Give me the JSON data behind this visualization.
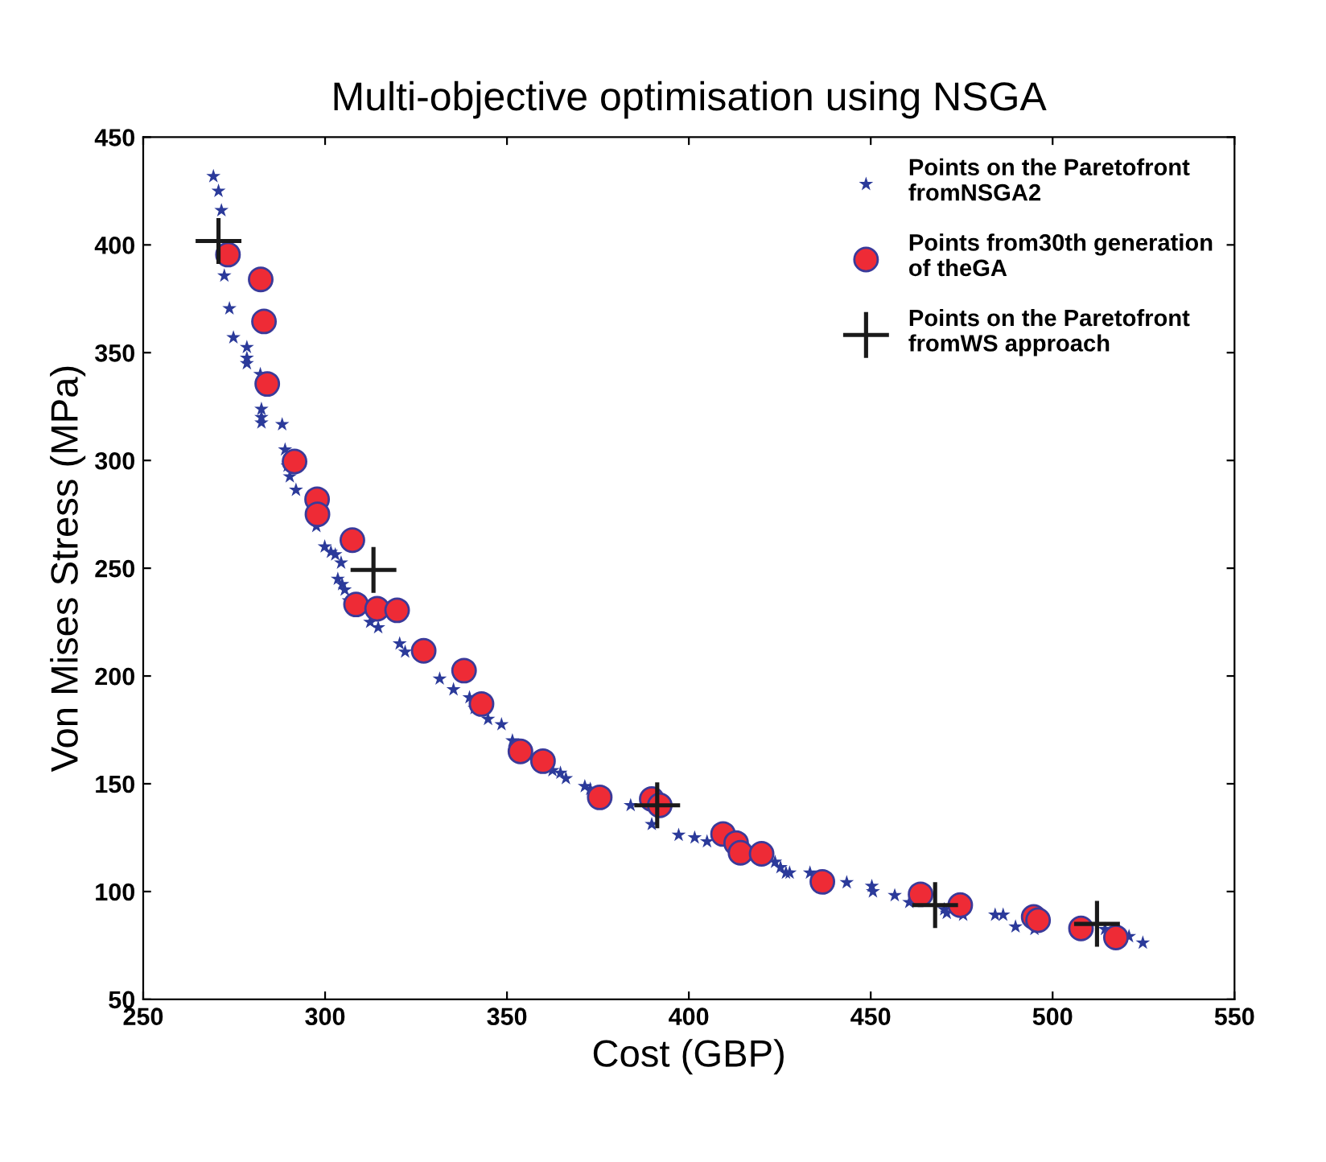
{
  "chart_data": {
    "type": "scatter",
    "title": "Multi-objective optimisation using NSGA",
    "xlabel": "Cost (GBP)",
    "ylabel": "Von Mises Stress (MPa)",
    "xlim": [
      250,
      550
    ],
    "xticks": [
      250,
      300,
      350,
      400,
      450,
      500,
      550
    ],
    "ylim": [
      50,
      450
    ],
    "yticks": [
      50,
      100,
      150,
      200,
      250,
      300,
      350,
      400,
      450
    ],
    "grid": false,
    "legend": "top right",
    "series": [
      {
        "name": "Points on the Paretofront\nfromNSGA2",
        "color": "#2b3a9a",
        "marker": "star",
        "x": [
          269.3,
          270.7,
          271.5,
          272.3,
          273.7,
          274.8,
          278.5,
          278.5,
          278.5,
          282.2,
          282.5,
          282.5,
          282.5,
          288.2,
          289,
          289.7,
          290.3,
          292,
          297.6,
          299.9,
          301.6,
          302.8,
          304.4,
          303.5,
          304.7,
          305.4,
          306.5,
          312.4,
          314.6,
          320.5,
          322,
          331.5,
          335.3,
          339.7,
          341.1,
          344.8,
          348.5,
          351.5,
          362.5,
          364.7,
          366.2,
          371.4,
          372.9,
          384,
          389.8,
          397.2,
          401.6,
          405,
          423.7,
          425.2,
          426.7,
          427.7,
          433.3,
          443.4,
          450.3,
          450.6,
          456.6,
          460.6,
          470.2,
          470.9,
          475.4,
          484.2,
          486.4,
          489.8,
          495,
          514.4,
          521,
          524.8
        ],
        "values": [
          431.8,
          425,
          416,
          385.7,
          370.5,
          357,
          352.5,
          347.5,
          345,
          340,
          323.8,
          320,
          317.5,
          316.7,
          305,
          297.5,
          292.5,
          286.3,
          269.5,
          260,
          257.5,
          256.3,
          252.5,
          245,
          242.5,
          240,
          235,
          225,
          222.5,
          215,
          211.2,
          198.7,
          193.7,
          190,
          185,
          180,
          177.5,
          170,
          156.2,
          155,
          152.5,
          148.8,
          147.5,
          140,
          131.2,
          126.2,
          125,
          123.2,
          113.7,
          111.2,
          108.7,
          108.7,
          108.7,
          104.2,
          102.5,
          100,
          98.2,
          95,
          91.7,
          90,
          89.2,
          89.2,
          89.2,
          83.7,
          82.5,
          82.5,
          79.2,
          76.2
        ]
      },
      {
        "name": "Points from30th generation\nof theGA",
        "color": "#ee2b36",
        "marker": "circle",
        "x": [
          273.3,
          282.3,
          283.2,
          284.1,
          291.6,
          297.8,
          297.9,
          307.5,
          308.5,
          314.3,
          319.8,
          327.1,
          338.2,
          343,
          353.7,
          359.9,
          375.5,
          389.8,
          392,
          409.4,
          413,
          414.2,
          420,
          436.7,
          463.7,
          474.6,
          494.8,
          496,
          507.8,
          517.4
        ],
        "values": [
          395.5,
          384,
          364.5,
          335.5,
          299.5,
          282,
          275,
          263,
          233.2,
          231.2,
          230.5,
          211.7,
          202.5,
          187,
          165,
          160.5,
          143.7,
          142.9,
          140,
          126.7,
          122.5,
          118,
          117.5,
          104.5,
          98.7,
          93.7,
          88.2,
          86.7,
          82.9,
          78.7
        ]
      },
      {
        "name": "Points on the Paretofront\nfromWS approach",
        "color": "#1a1a1a",
        "marker": "cross",
        "x": [
          270.7,
          313.3,
          391.3,
          467.7,
          512.2
        ],
        "values": [
          401.8,
          249.2,
          140,
          93.7,
          85
        ]
      }
    ]
  }
}
